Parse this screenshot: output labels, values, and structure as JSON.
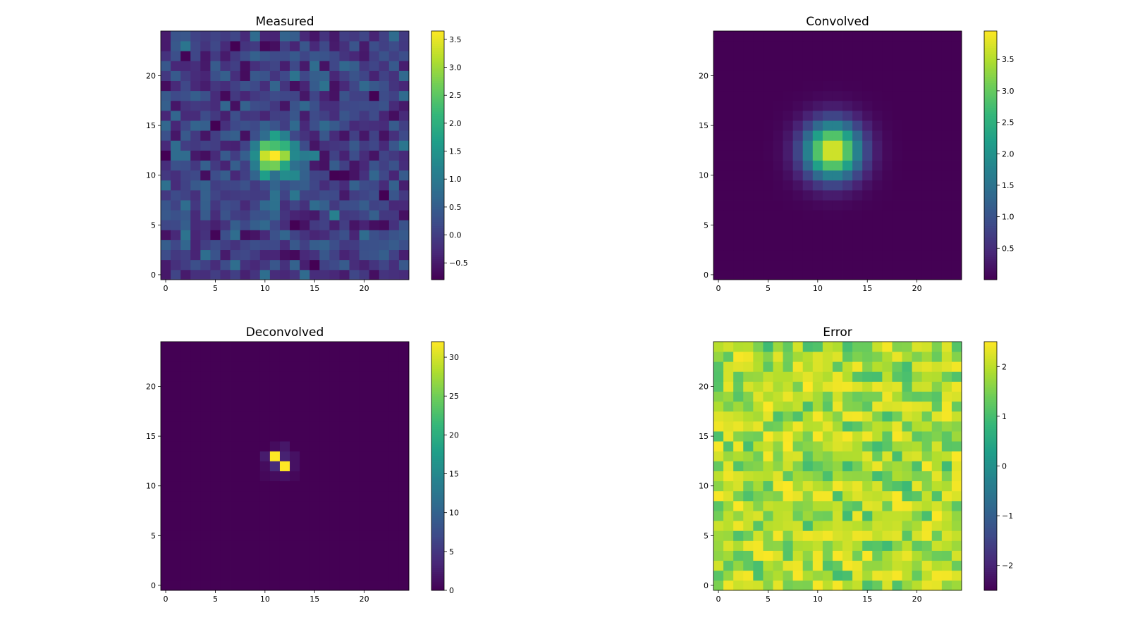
{
  "chart_data": [
    {
      "type": "heatmap",
      "title": "Measured",
      "grid_size": 25,
      "xlim": [
        -0.5,
        24.5
      ],
      "ylim": [
        -0.5,
        24.5
      ],
      "xticks": [
        0,
        5,
        10,
        15,
        20
      ],
      "yticks": [
        0,
        5,
        10,
        15,
        20
      ],
      "xtick_labels": [
        "0",
        "5",
        "10",
        "15",
        "20"
      ],
      "ytick_labels": [
        "0",
        "5",
        "10",
        "15",
        "20"
      ],
      "colorbar": {
        "min": -0.8,
        "max": 3.65,
        "ticks": [
          -0.5,
          0.0,
          0.5,
          1.0,
          1.5,
          2.0,
          2.5,
          3.0,
          3.5
        ],
        "tick_labels": [
          "−0.5",
          "0.0",
          "0.5",
          "1.0",
          "1.5",
          "2.0",
          "2.5",
          "3.0",
          "3.5"
        ]
      },
      "field": {
        "kind": "gaussian_noise",
        "peak": 3.2,
        "sigma": 1.6,
        "center": [
          11,
          12
        ],
        "noise_sd": 0.4,
        "base": 0.0,
        "seed": 11
      }
    },
    {
      "type": "heatmap",
      "title": "Convolved",
      "grid_size": 25,
      "xlim": [
        -0.5,
        24.5
      ],
      "ylim": [
        -0.5,
        24.5
      ],
      "xticks": [
        0,
        5,
        10,
        15,
        20
      ],
      "yticks": [
        0,
        5,
        10,
        15,
        20
      ],
      "xtick_labels": [
        "0",
        "5",
        "10",
        "15",
        "20"
      ],
      "ytick_labels": [
        "0",
        "5",
        "10",
        "15",
        "20"
      ],
      "colorbar": {
        "min": 0.0,
        "max": 3.95,
        "ticks": [
          0.5,
          1.0,
          1.5,
          2.0,
          2.5,
          3.0,
          3.5
        ],
        "tick_labels": [
          "0.5",
          "1.0",
          "1.5",
          "2.0",
          "2.5",
          "3.0",
          "3.5"
        ]
      },
      "field": {
        "kind": "gaussian",
        "peak": 3.9,
        "sigma": 2.0,
        "center": [
          11.5,
          12.5
        ]
      }
    },
    {
      "type": "heatmap",
      "title": "Deconvolved",
      "grid_size": 25,
      "xlim": [
        -0.5,
        24.5
      ],
      "ylim": [
        -0.5,
        24.5
      ],
      "xticks": [
        0,
        5,
        10,
        15,
        20
      ],
      "yticks": [
        0,
        5,
        10,
        15,
        20
      ],
      "xtick_labels": [
        "0",
        "5",
        "10",
        "15",
        "20"
      ],
      "ytick_labels": [
        "0",
        "5",
        "10",
        "15",
        "20"
      ],
      "colorbar": {
        "min": 0.0,
        "max": 32.0,
        "ticks": [
          0,
          5,
          10,
          15,
          20,
          25,
          30
        ],
        "tick_labels": [
          "0",
          "5",
          "10",
          "15",
          "20",
          "25",
          "30"
        ]
      },
      "cells": [
        {
          "x": 11,
          "y": 13,
          "v": 32
        },
        {
          "x": 12,
          "y": 12,
          "v": 32
        },
        {
          "x": 10,
          "y": 13,
          "v": 2.5
        },
        {
          "x": 12,
          "y": 13,
          "v": 3
        },
        {
          "x": 11,
          "y": 12,
          "v": 4
        },
        {
          "x": 13,
          "y": 13,
          "v": 1.5
        },
        {
          "x": 12,
          "y": 14,
          "v": 2
        },
        {
          "x": 11,
          "y": 14,
          "v": 1
        },
        {
          "x": 10,
          "y": 12,
          "v": 1
        },
        {
          "x": 13,
          "y": 12,
          "v": 1.5
        },
        {
          "x": 11,
          "y": 11,
          "v": 1
        },
        {
          "x": 12,
          "y": 11,
          "v": 1.5
        },
        {
          "x": 10,
          "y": 11,
          "v": 0.6
        },
        {
          "x": 13,
          "y": 11,
          "v": 0.6
        }
      ]
    },
    {
      "type": "heatmap",
      "title": "Error",
      "grid_size": 25,
      "xlim": [
        -0.5,
        24.5
      ],
      "ylim": [
        -0.5,
        24.5
      ],
      "xticks": [
        0,
        5,
        10,
        15,
        20
      ],
      "yticks": [
        0,
        5,
        10,
        15,
        20
      ],
      "xtick_labels": [
        "0",
        "5",
        "10",
        "15",
        "20"
      ],
      "ytick_labels": [
        "0",
        "5",
        "10",
        "15",
        "20"
      ],
      "colorbar": {
        "min": -2.5,
        "max": 2.5,
        "ticks": [
          -2,
          -1,
          0,
          1,
          2
        ],
        "tick_labels": [
          "−2",
          "−1",
          "0",
          "1",
          "2"
        ]
      },
      "field": {
        "kind": "uniform_noise",
        "low": 0.9,
        "high": 2.5,
        "seed": 29
      }
    }
  ]
}
